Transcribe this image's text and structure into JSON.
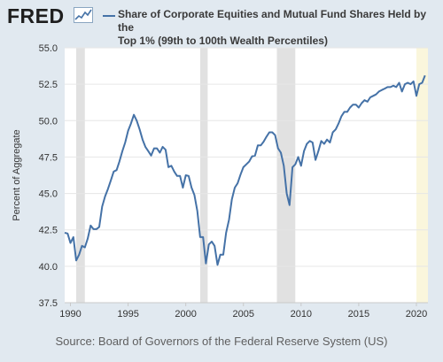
{
  "header": {
    "brand": "FRED",
    "brand_icon": "sparkline-chart-icon",
    "legend_line1": "Share of Corporate Equities and Mutual Fund Shares Held by the",
    "legend_line2": "Top 1% (99th to 100th Wealth Percentiles)"
  },
  "footer": {
    "source": "Source: Board of Governors of the Federal Reserve System (US)"
  },
  "colors": {
    "line": "#4572a7",
    "recession": "#e1e1e1",
    "forecast_band": "#faf6dc",
    "page_background": "#e1e9f0",
    "plot_background": "#ffffff"
  },
  "chart_data": {
    "type": "line",
    "title": "Share of Corporate Equities and Mutual Fund Shares Held by the Top 1% (99th to 100th Wealth Percentiles)",
    "xlabel": "",
    "ylabel": "Percent of Aggregate",
    "xlim": [
      1989.5,
      2021.0
    ],
    "ylim": [
      37.5,
      55.0
    ],
    "x_ticks": [
      1990,
      1995,
      2000,
      2005,
      2010,
      2015,
      2020
    ],
    "y_ticks": [
      "37.5",
      "40.0",
      "42.5",
      "45.0",
      "47.5",
      "50.0",
      "52.5",
      "55.0"
    ],
    "grid": "horizontal",
    "recessions": [
      [
        1990.5,
        1991.25
      ],
      [
        2001.25,
        2001.9
      ],
      [
        2007.9,
        2009.5
      ]
    ],
    "highlight_band": [
      2020.0,
      2021.0
    ],
    "series": [
      {
        "name": "Share of Corporate Equities and Mutual Fund Shares Held by the Top 1% (99th to 100th Wealth Percentiles)",
        "x": [
          1989.5,
          1989.75,
          1990.0,
          1990.25,
          1990.5,
          1990.75,
          1991.0,
          1991.25,
          1991.5,
          1991.75,
          1992.0,
          1992.25,
          1992.5,
          1992.75,
          1993.0,
          1993.25,
          1993.5,
          1993.75,
          1994.0,
          1994.25,
          1994.5,
          1994.75,
          1995.0,
          1995.25,
          1995.5,
          1995.75,
          1996.0,
          1996.25,
          1996.5,
          1996.75,
          1997.0,
          1997.25,
          1997.5,
          1997.75,
          1998.0,
          1998.25,
          1998.5,
          1998.75,
          1999.0,
          1999.25,
          1999.5,
          1999.75,
          2000.0,
          2000.25,
          2000.5,
          2000.75,
          2001.0,
          2001.25,
          2001.5,
          2001.75,
          2002.0,
          2002.25,
          2002.5,
          2002.75,
          2003.0,
          2003.25,
          2003.5,
          2003.75,
          2004.0,
          2004.25,
          2004.5,
          2004.75,
          2005.0,
          2005.25,
          2005.5,
          2005.75,
          2006.0,
          2006.25,
          2006.5,
          2006.75,
          2007.0,
          2007.25,
          2007.5,
          2007.75,
          2008.0,
          2008.25,
          2008.5,
          2008.75,
          2009.0,
          2009.25,
          2009.5,
          2009.75,
          2010.0,
          2010.25,
          2010.5,
          2010.75,
          2011.0,
          2011.25,
          2011.5,
          2011.75,
          2012.0,
          2012.25,
          2012.5,
          2012.75,
          2013.0,
          2013.25,
          2013.5,
          2013.75,
          2014.0,
          2014.25,
          2014.5,
          2014.75,
          2015.0,
          2015.25,
          2015.5,
          2015.75,
          2016.0,
          2016.25,
          2016.5,
          2016.75,
          2017.0,
          2017.25,
          2017.5,
          2017.75,
          2018.0,
          2018.25,
          2018.5,
          2018.75,
          2019.0,
          2019.25,
          2019.5,
          2019.75,
          2020.0,
          2020.25,
          2020.5,
          2020.75
        ],
        "values": [
          42.3,
          42.25,
          41.6,
          42.0,
          40.4,
          40.8,
          41.4,
          41.3,
          41.9,
          42.8,
          42.55,
          42.55,
          42.7,
          44.1,
          44.8,
          45.3,
          45.9,
          46.5,
          46.6,
          47.2,
          47.9,
          48.5,
          49.3,
          49.8,
          50.4,
          50.0,
          49.4,
          48.7,
          48.2,
          47.9,
          47.6,
          48.1,
          48.1,
          47.8,
          48.2,
          48.0,
          46.8,
          46.9,
          46.5,
          46.2,
          46.2,
          45.4,
          46.25,
          46.2,
          45.4,
          44.9,
          43.8,
          42.0,
          42.0,
          40.2,
          41.5,
          41.7,
          41.4,
          40.1,
          40.8,
          40.8,
          42.3,
          43.2,
          44.6,
          45.4,
          45.7,
          46.3,
          46.8,
          47.0,
          47.2,
          47.55,
          47.6,
          48.3,
          48.3,
          48.55,
          48.9,
          49.2,
          49.2,
          49.0,
          48.1,
          47.8,
          46.9,
          45.0,
          44.2,
          46.8,
          47.0,
          47.5,
          46.9,
          47.9,
          48.4,
          48.6,
          48.5,
          47.3,
          47.9,
          48.6,
          48.4,
          48.7,
          48.5,
          49.2,
          49.4,
          49.8,
          50.3,
          50.6,
          50.6,
          50.9,
          51.1,
          51.1,
          50.9,
          51.2,
          51.4,
          51.3,
          51.6,
          51.7,
          51.8,
          52.0,
          52.1,
          52.2,
          52.3,
          52.3,
          52.4,
          52.3,
          52.6,
          52.0,
          52.5,
          52.6,
          52.5,
          52.7,
          51.7,
          52.5,
          52.6,
          53.1
        ]
      }
    ]
  }
}
